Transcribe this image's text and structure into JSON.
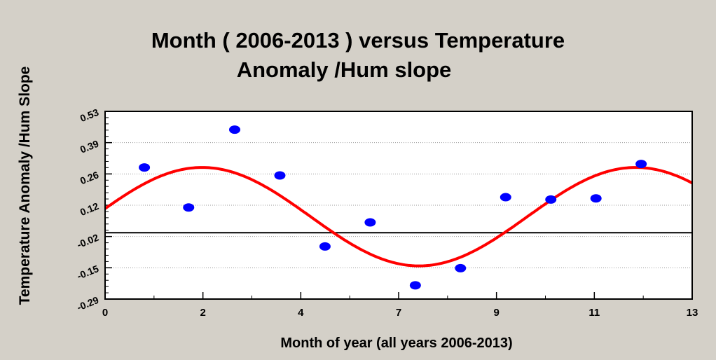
{
  "chart_data": {
    "type": "scatter",
    "title_lines": [
      "Month ( 2006-2013 ) versus Temperature",
      "Anomaly /Hum slope"
    ],
    "xlabel": "Month of year (all years 2006-2013)",
    "ylabel": "Temperature Anomaly /Hum Slope",
    "xlim": [
      0,
      13
    ],
    "ylim": [
      -0.29,
      0.53
    ],
    "x_ticks": [
      "0",
      "2",
      "4",
      "7",
      "9",
      "11",
      "13"
    ],
    "y_ticks": [
      "0.53",
      "0.39",
      "0.26",
      "0.12",
      "-0.02",
      "-0.15",
      "-0.29"
    ],
    "grid": "horizontal dotted",
    "reference_line_y": 0.0,
    "points": {
      "x": [
        0.87,
        1.85,
        2.87,
        3.87,
        4.87,
        5.87,
        6.87,
        7.87,
        8.87,
        9.87,
        10.87,
        11.87
      ],
      "y": [
        0.285,
        0.11,
        0.45,
        0.25,
        -0.06,
        0.045,
        -0.23,
        -0.155,
        0.155,
        0.145,
        0.15,
        0.3
      ],
      "color": "#0000ff"
    },
    "fit_curve": {
      "type": "sinusoid",
      "amplitude": 0.215,
      "offset": 0.07,
      "period_months": 9.6,
      "peak_month": 2.15,
      "color": "#ff0000"
    }
  }
}
